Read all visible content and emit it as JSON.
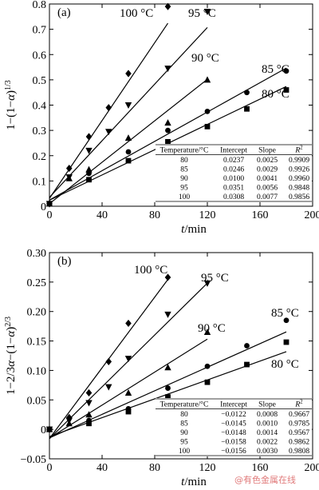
{
  "chart_data": [
    {
      "panel_label": "(a)",
      "type": "scatter",
      "xlabel": "t/min",
      "ylabel": "1−(1−α)^(1/3)",
      "xlim": [
        0,
        200
      ],
      "ylim": [
        0,
        0.8
      ],
      "xticks": [
        0,
        40,
        80,
        120,
        160,
        200
      ],
      "yticks": [
        0,
        0.1,
        0.2,
        0.3,
        0.4,
        0.5,
        0.6,
        0.7,
        0.8
      ],
      "xtick_labels": [
        "0",
        "40",
        "80",
        "120",
        "160",
        "200"
      ],
      "ytick_labels": [
        "0",
        "0.1",
        "0.2",
        "0.3",
        "0.4",
        "0.5",
        "0.6",
        "0.7",
        "0.8"
      ],
      "series": [
        {
          "name": "80 °C",
          "marker": "square",
          "x": [
            0,
            30,
            60,
            90,
            120,
            150,
            180
          ],
          "y": [
            0.01,
            0.105,
            0.18,
            0.255,
            0.315,
            0.385,
            0.46
          ],
          "fit": {
            "intercept": 0.0237,
            "slope": 0.0025,
            "x_end": 180
          }
        },
        {
          "name": "85 °C",
          "marker": "circle",
          "x": [
            0,
            30,
            60,
            90,
            120,
            150,
            180
          ],
          "y": [
            0.01,
            0.13,
            0.215,
            0.3,
            0.375,
            0.45,
            0.535
          ],
          "fit": {
            "intercept": 0.0246,
            "slope": 0.0029,
            "x_end": 180
          }
        },
        {
          "name": "90 °C",
          "marker": "triangle-up",
          "x": [
            0,
            15,
            30,
            60,
            90,
            120
          ],
          "y": [
            0.01,
            0.11,
            0.145,
            0.27,
            0.33,
            0.5
          ],
          "fit": {
            "intercept": 0.01,
            "slope": 0.0041,
            "x_end": 120
          }
        },
        {
          "name": "95 °C",
          "marker": "triangle-down",
          "x": [
            0,
            15,
            30,
            45,
            60,
            90,
            120
          ],
          "y": [
            0.01,
            0.115,
            0.22,
            0.295,
            0.4,
            0.545,
            0.77
          ],
          "fit": {
            "intercept": 0.0351,
            "slope": 0.0056,
            "x_end": 120
          }
        },
        {
          "name": "100 °C",
          "marker": "diamond",
          "x": [
            0,
            15,
            30,
            45,
            60,
            90
          ],
          "y": [
            0.01,
            0.15,
            0.275,
            0.39,
            0.525,
            0.79
          ],
          "fit": {
            "intercept": 0.0308,
            "slope": 0.0077,
            "x_end": 90
          }
        }
      ],
      "table": {
        "headers": [
          "Temperature/°C",
          "Intercept",
          "Slope",
          "R²"
        ],
        "rows": [
          [
            "80",
            "0.0237",
            "0.0025",
            "0.9909"
          ],
          [
            "85",
            "0.0246",
            "0.0029",
            "0.9926"
          ],
          [
            "90",
            "0.0100",
            "0.0041",
            "0.9960"
          ],
          [
            "95",
            "0.0351",
            "0.0056",
            "0.9848"
          ],
          [
            "100",
            "0.0308",
            "0.0077",
            "0.9856"
          ]
        ]
      }
    },
    {
      "panel_label": "(b)",
      "type": "scatter",
      "xlabel": "t/min",
      "ylabel": "1−2/3α−(1−α)^(2/3)",
      "xlim": [
        0,
        200
      ],
      "ylim": [
        -0.05,
        0.3
      ],
      "xticks": [
        0,
        40,
        80,
        120,
        160,
        200
      ],
      "yticks": [
        -0.05,
        0,
        0.05,
        0.1,
        0.15,
        0.2,
        0.25,
        0.3
      ],
      "xtick_labels": [
        "0",
        "40",
        "80",
        "120",
        "160",
        "200"
      ],
      "ytick_labels": [
        "−0.05",
        "0",
        "0.05",
        "0.10",
        "0.15",
        "0.20",
        "0.25",
        "0.30"
      ],
      "series": [
        {
          "name": "80 °C",
          "marker": "square",
          "x": [
            0,
            30,
            60,
            90,
            120,
            150,
            180
          ],
          "y": [
            0.0,
            0.01,
            0.03,
            0.055,
            0.08,
            0.11,
            0.148
          ],
          "fit": {
            "intercept": -0.0122,
            "slope": 0.0008,
            "x_end": 180
          }
        },
        {
          "name": "85 °C",
          "marker": "circle",
          "x": [
            0,
            30,
            60,
            90,
            120,
            150,
            180
          ],
          "y": [
            0.0,
            0.015,
            0.035,
            0.07,
            0.107,
            0.142,
            0.185
          ],
          "fit": {
            "intercept": -0.0145,
            "slope": 0.001,
            "x_end": 180
          }
        },
        {
          "name": "90 °C",
          "marker": "triangle-up",
          "x": [
            0,
            15,
            30,
            60,
            90,
            120
          ],
          "y": [
            0.0,
            0.01,
            0.025,
            0.062,
            0.105,
            0.165
          ],
          "fit": {
            "intercept": -0.0148,
            "slope": 0.0014,
            "x_end": 120
          }
        },
        {
          "name": "95 °C",
          "marker": "triangle-down",
          "x": [
            0,
            15,
            30,
            45,
            60,
            90,
            120
          ],
          "y": [
            0.0,
            0.015,
            0.045,
            0.072,
            0.12,
            0.195,
            0.248
          ],
          "fit": {
            "intercept": -0.0158,
            "slope": 0.0022,
            "x_end": 120
          }
        },
        {
          "name": "100 °C",
          "marker": "diamond",
          "x": [
            0,
            15,
            30,
            45,
            60,
            90
          ],
          "y": [
            0.0,
            0.02,
            0.062,
            0.115,
            0.18,
            0.258
          ],
          "fit": {
            "intercept": -0.0156,
            "slope": 0.003,
            "x_end": 90
          }
        }
      ],
      "table": {
        "headers": [
          "Temperature/°C",
          "Intercept",
          "Slope",
          "R²"
        ],
        "rows": [
          [
            "80",
            "−0.0122",
            "0.0008",
            "0.9667"
          ],
          [
            "85",
            "−0.0145",
            "0.0010",
            "0.9785"
          ],
          [
            "90",
            "−0.0148",
            "0.0014",
            "0.9567"
          ],
          [
            "95",
            "−0.0158",
            "0.0022",
            "0.9862"
          ],
          [
            "100",
            "−0.0156",
            "0.0030",
            "0.9808"
          ]
        ]
      }
    }
  ],
  "watermark": "@有色金属在线"
}
